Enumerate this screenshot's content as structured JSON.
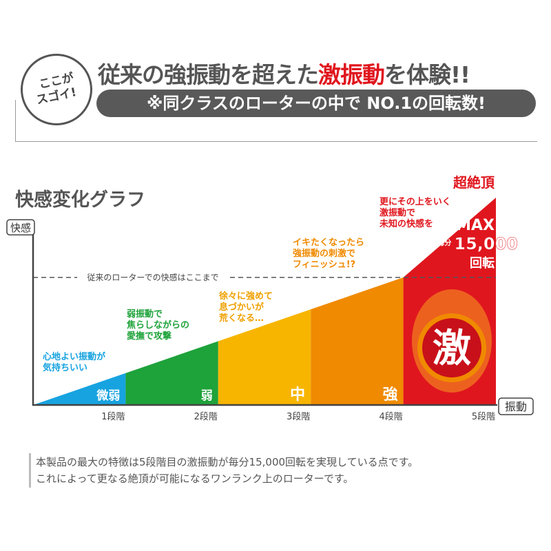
{
  "badge": {
    "line1": "ここが",
    "line2": "スゴイ!"
  },
  "headline": {
    "part1": "従来の強振動を超えた",
    "highlight": "激振動",
    "part2": "を体験!!"
  },
  "subheadline": "※同クラスのローターの中で NO.1の回転数!",
  "chart_data": {
    "type": "area",
    "title": "快感変化グラフ",
    "ylabel": "快感",
    "xlabel": "振動",
    "categories": [
      "1段階",
      "2段階",
      "3段階",
      "4段階",
      "5段階"
    ],
    "stage_labels": [
      "微弱",
      "弱",
      "中",
      "強",
      "激"
    ],
    "values": [
      1,
      2,
      3,
      4,
      6.5
    ],
    "reference_line": {
      "value": 4,
      "label": "従来のローターでの快感はここまで"
    },
    "colors": [
      "#17a3e0",
      "#1ea23a",
      "#f7b500",
      "#f08a00",
      "#e0161e"
    ],
    "annotations": [
      {
        "lines": [
          "心地よい振動が",
          "気持ちいい"
        ],
        "color": "#17a3e0"
      },
      {
        "lines": [
          "弱振動で",
          "焦らしながらの",
          "愛撫で攻撃"
        ],
        "color": "#1ea23a"
      },
      {
        "lines": [
          "徐々に強めて",
          "息づかいが",
          "荒くなる…"
        ],
        "color": "#f0a000"
      },
      {
        "lines": [
          "イキたくなったら",
          "強振動の刺激で",
          "フィニッシュ!?"
        ],
        "color": "#f08a00"
      },
      {
        "lines": [
          "更にその上をいく",
          "激振動で",
          "未知の快感を"
        ],
        "color": "#e0161e"
      }
    ],
    "peak_label": "超絶頂",
    "max": {
      "label": "MAX",
      "per": "毎分",
      "value": "15,000",
      "unit": "回転"
    }
  },
  "notes": [
    "本製品の最大の特徴は5段階目の激振動が毎分15,000回転を実現している点です。",
    "これによって更なる絶頂が可能になるワンランク上のローターです。"
  ]
}
